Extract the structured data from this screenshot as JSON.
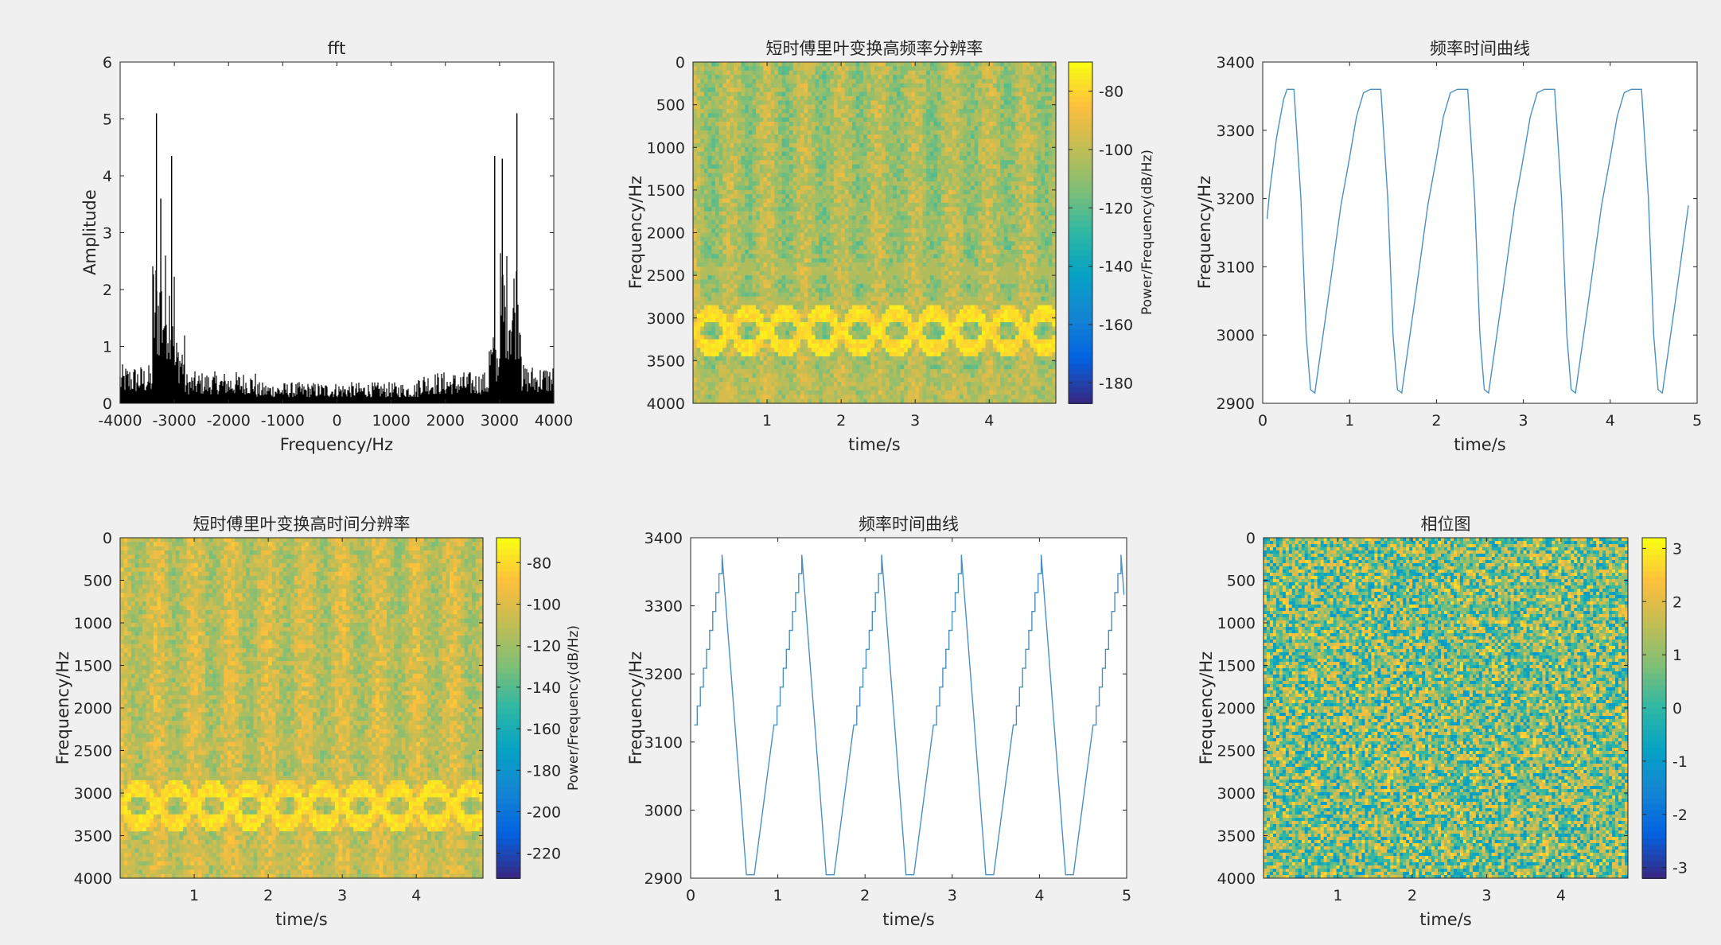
{
  "figure": {
    "background": "#f0f0f0"
  },
  "chart_data": [
    {
      "id": "fft",
      "type": "bar",
      "title": "fft",
      "xlabel": "Frequency/Hz",
      "ylabel": "Amplitude",
      "xlim": [
        -4000,
        4000
      ],
      "ylim": [
        0,
        6
      ],
      "xticks": [
        -4000,
        -3000,
        -2000,
        -1000,
        0,
        1000,
        2000,
        3000,
        4000
      ],
      "yticks": [
        0,
        1,
        2,
        3,
        4,
        5,
        6
      ],
      "color": "#000000",
      "bands": [
        {
          "from": -4000,
          "to": -3400,
          "level": 0.55
        },
        {
          "from": -3400,
          "to": -3000,
          "level": 2.2
        },
        {
          "from": -3000,
          "to": -2800,
          "level": 1.0
        },
        {
          "from": -2800,
          "to": -1500,
          "level": 0.45
        },
        {
          "from": -1500,
          "to": 1500,
          "level": 0.3
        },
        {
          "from": 1500,
          "to": 2800,
          "level": 0.45
        },
        {
          "from": 2800,
          "to": 3000,
          "level": 1.0
        },
        {
          "from": 3000,
          "to": 3400,
          "level": 2.2
        },
        {
          "from": 3400,
          "to": 4000,
          "level": 0.55
        }
      ],
      "peaks": [
        {
          "x": -3330,
          "value": 5.1
        },
        {
          "x": -3050,
          "value": 4.35
        },
        {
          "x": -3250,
          "value": 3.6
        },
        {
          "x": 3320,
          "value": 5.1
        },
        {
          "x": 2910,
          "value": 4.35
        },
        {
          "x": 3050,
          "value": 4.3
        }
      ]
    },
    {
      "id": "stft-high-freq",
      "type": "heatmap",
      "title": "短时傅里叶变换高频率分辨率",
      "xlabel": "time/s",
      "ylabel": "Frequency/Hz",
      "xlim": [
        0,
        4.9
      ],
      "ylim": [
        0,
        4000
      ],
      "y_reversed": true,
      "xticks": [
        1,
        2,
        3,
        4
      ],
      "yticks": [
        0,
        500,
        1000,
        1500,
        2000,
        2500,
        3000,
        3500,
        4000
      ],
      "colorbar": {
        "label": "Power/Frequency(dB/Hz)",
        "range": [
          -187,
          -70
        ],
        "ticks": [
          -80,
          -100,
          -120,
          -140,
          -160,
          -180
        ]
      },
      "period_s": 1.0,
      "sweep_center_hz": 3150,
      "sweep_half_range_hz": 210,
      "background_level": -112
    },
    {
      "id": "freq-time-1",
      "type": "line",
      "title": "频率时间曲线",
      "xlabel": "time/s",
      "ylabel": "Frequency/Hz",
      "xlim": [
        0,
        5
      ],
      "ylim": [
        2900,
        3400
      ],
      "xticks": [
        0,
        1,
        2,
        3,
        4,
        5
      ],
      "yticks": [
        2900,
        3000,
        3100,
        3200,
        3300,
        3400
      ],
      "color": "#4a90c2",
      "series": [
        {
          "x": [
            0.05,
            0.08,
            0.16,
            0.24,
            0.28,
            0.36,
            0.44,
            0.5,
            0.55,
            0.6,
            0.75,
            0.9,
            1.0,
            1.08,
            1.16,
            1.24,
            1.28,
            1.36,
            1.44,
            1.5,
            1.55,
            1.6,
            1.75,
            1.9,
            2.0,
            2.08,
            2.16,
            2.24,
            2.28,
            2.36,
            2.44,
            2.5,
            2.55,
            2.6,
            2.75,
            2.9,
            3.0,
            3.08,
            3.16,
            3.24,
            3.28,
            3.36,
            3.44,
            3.5,
            3.55,
            3.6,
            3.75,
            3.9,
            4.0,
            4.08,
            4.16,
            4.24,
            4.28,
            4.36,
            4.44,
            4.5,
            4.55,
            4.6,
            4.75,
            4.9
          ],
          "y": [
            3170,
            3210,
            3290,
            3345,
            3360,
            3360,
            3200,
            3000,
            2920,
            2915,
            3050,
            3190,
            3260,
            3320,
            3355,
            3360,
            3360,
            3360,
            3200,
            3000,
            2920,
            2915,
            3050,
            3190,
            3260,
            3320,
            3355,
            3360,
            3360,
            3360,
            3200,
            3000,
            2920,
            2915,
            3050,
            3190,
            3260,
            3320,
            3355,
            3360,
            3360,
            3360,
            3200,
            3000,
            2920,
            2915,
            3050,
            3190,
            3260,
            3320,
            3355,
            3360,
            3360,
            3360,
            3200,
            3000,
            2920,
            2915,
            3050,
            3190
          ]
        }
      ]
    },
    {
      "id": "stft-high-time",
      "type": "heatmap",
      "title": "短时傅里叶变换高时间分辨率",
      "xlabel": "time/s",
      "ylabel": "Frequency/Hz",
      "xlim": [
        0,
        4.9
      ],
      "ylim": [
        0,
        4000
      ],
      "y_reversed": true,
      "xticks": [
        1,
        2,
        3,
        4
      ],
      "yticks": [
        0,
        500,
        1000,
        1500,
        2000,
        2500,
        3000,
        3500,
        4000
      ],
      "colorbar": {
        "label": "Power/Frequency(dB/Hz)",
        "range": [
          -232,
          -68
        ],
        "ticks": [
          -80,
          -100,
          -120,
          -140,
          -160,
          -180,
          -200,
          -220
        ]
      },
      "period_s": 1.0,
      "sweep_center_hz": 3150,
      "sweep_half_range_hz": 210,
      "background_level": -118
    },
    {
      "id": "freq-time-2",
      "type": "line",
      "title": "频率时间曲线",
      "xlabel": "time/s",
      "ylabel": "Frequency/Hz",
      "xlim": [
        0,
        5
      ],
      "ylim": [
        2900,
        3400
      ],
      "xticks": [
        0,
        1,
        2,
        3,
        4,
        5
      ],
      "yticks": [
        2900,
        3000,
        3100,
        3200,
        3300,
        3400
      ],
      "color": "#4a90c2",
      "period_s": 0.915,
      "start_s": 0.04,
      "rise": {
        "from": 3125,
        "to": 3375,
        "steps": 9,
        "duration_s": 0.32
      },
      "fall": {
        "to": 2905,
        "duration_s": 0.28
      },
      "bottom_hold_s": 0.09
    },
    {
      "id": "phase",
      "type": "heatmap",
      "title": "相位图",
      "xlabel": "time/s",
      "ylabel": "Frequency/Hz",
      "xlim": [
        0,
        4.9
      ],
      "ylim": [
        0,
        4000
      ],
      "y_reversed": true,
      "xticks": [
        1,
        2,
        3,
        4
      ],
      "yticks": [
        0,
        500,
        1000,
        1500,
        2000,
        2500,
        3000,
        3500,
        4000
      ],
      "colorbar": {
        "label": "",
        "range": [
          -3.2,
          3.2
        ],
        "ticks": [
          3,
          2,
          1,
          0,
          -1,
          -2,
          -3
        ]
      },
      "distribution": "uniform random phase"
    }
  ]
}
